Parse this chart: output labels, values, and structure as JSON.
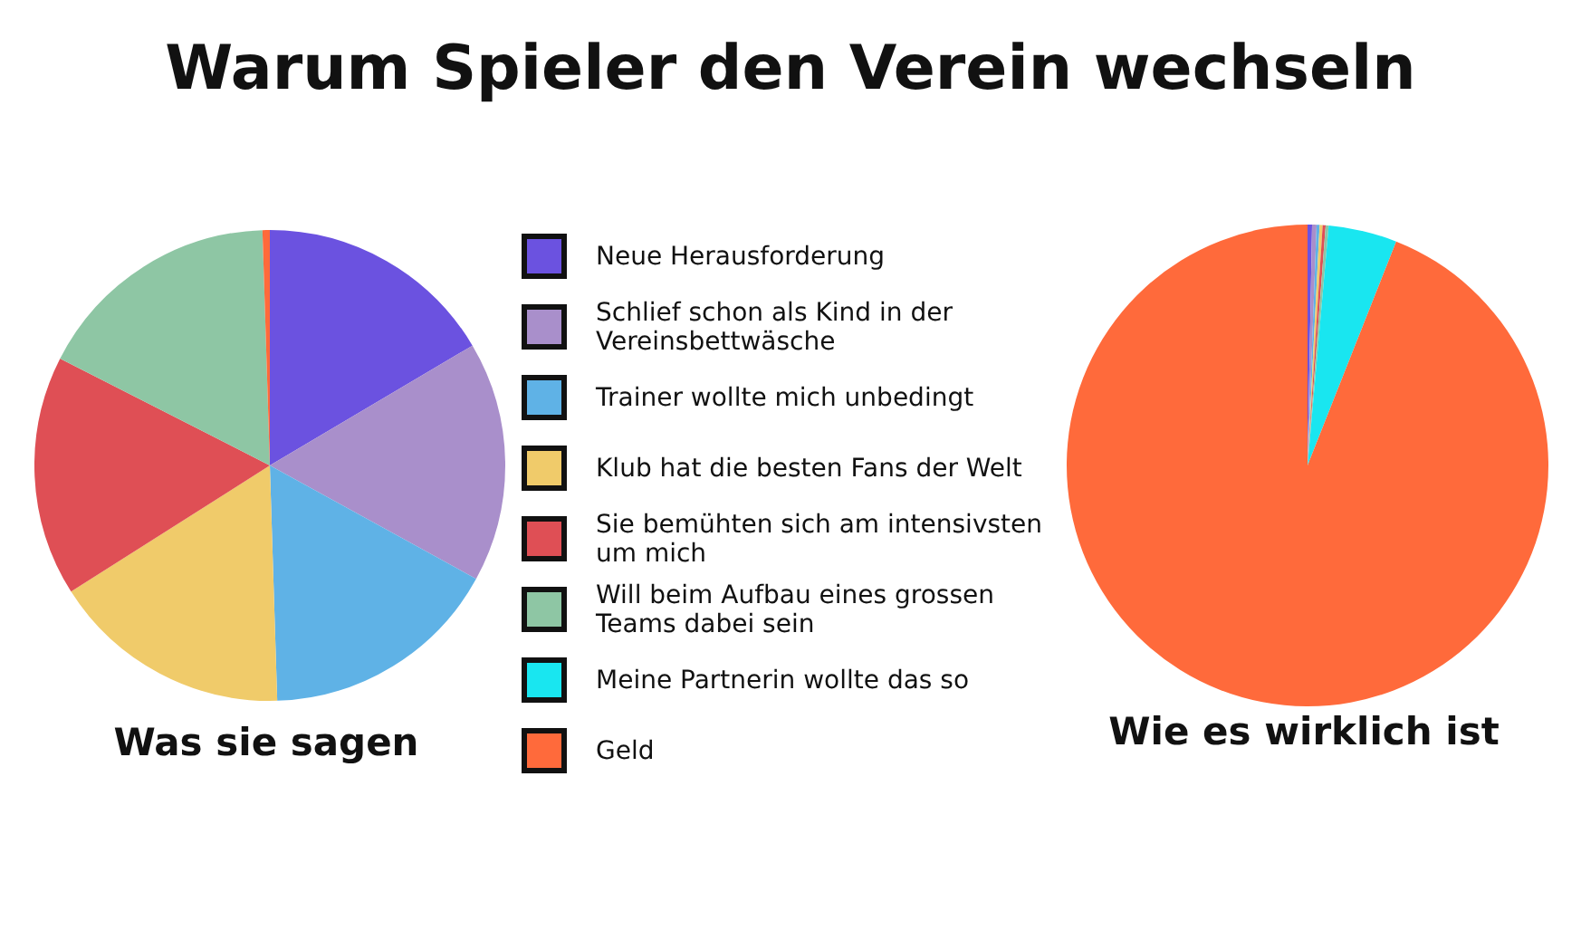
{
  "chart_data": [
    {
      "type": "pie",
      "title": "Warum Spieler den Verein wechseln",
      "subtitle": "Was sie sagen",
      "legend": "right",
      "categories": [
        "Neue Herausforderung",
        "Schlief schon als Kind in der Vereinsbettwäsche",
        "Trainer wollte mich unbedingt",
        "Klub hat die besten Fans der Welt",
        "Sie bemühten sich am intensivsten um mich",
        "Will beim Aufbau eines grossen Teams dabei sein",
        "Meine Partnerin wollte das so",
        "Geld"
      ],
      "values": [
        16.5,
        16.5,
        16.5,
        16.5,
        16.5,
        17,
        0,
        0.5
      ],
      "colors": [
        "#6b52e0",
        "#a98fcb",
        "#5fb2e6",
        "#f0cb6a",
        "#df4f55",
        "#8ec6a4",
        "#19e6f0",
        "#ff6a3b"
      ]
    },
    {
      "type": "pie",
      "subtitle": "Wie es wirklich ist",
      "categories": [
        null,
        null,
        null,
        null,
        null,
        null,
        null,
        null
      ],
      "values": [
        0.3,
        0.3,
        0.2,
        0.2,
        0.2,
        0.2,
        4.6,
        94
      ],
      "colors": [
        "#6b52e0",
        "#a98fcb",
        "#5fb2e6",
        "#f0cb6a",
        "#df4f55",
        "#8ec6a4",
        "#19e6f0",
        "#ff6a3b"
      ]
    }
  ]
}
